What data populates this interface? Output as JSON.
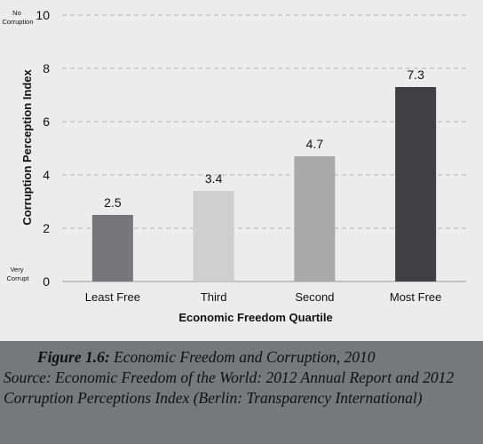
{
  "chart_data": {
    "type": "bar",
    "categories": [
      "Least Free",
      "Third",
      "Second",
      "Most Free"
    ],
    "values": [
      2.5,
      3.4,
      4.7,
      7.3
    ],
    "data_labels": [
      "2.5",
      "3.4",
      "4.7",
      "7.3"
    ],
    "xlabel": "Economic Freedom Quartile",
    "ylabel": "Corruption Perception Index",
    "ylim": [
      0,
      10
    ],
    "yticks": [
      "0",
      "2",
      "4",
      "6",
      "8",
      "10"
    ],
    "ytick_values": [
      0,
      2,
      4,
      6,
      8,
      10
    ],
    "top_annotation": [
      "No",
      "Corruption"
    ],
    "bottom_annotation": [
      "Very",
      "Corrupt"
    ],
    "grid": "horizontal dashed",
    "bar_colors": [
      "#77767a",
      "#cfcfcf",
      "#a9a9a9",
      "#403f41"
    ]
  },
  "caption": {
    "figure_label": "Figure 1.6:",
    "title": " Economic Freedom and Corruption, 2010",
    "source": "Source: Economic Freedom of the World: 2012 Annual Report and 2012 Corruption Perceptions Index (Berlin: Transparency International)"
  }
}
